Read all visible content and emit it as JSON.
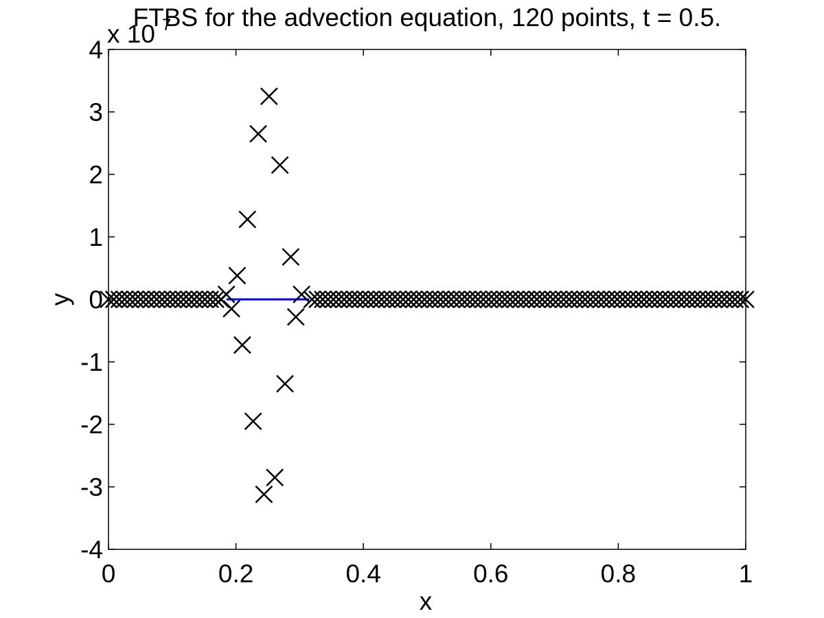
{
  "chart_data": {
    "type": "scatter",
    "title": "FTBS for the advection equation, 120 points, t = 0.5.",
    "xlabel": "x",
    "ylabel": "y",
    "y_exponent_label": {
      "base": "x 10",
      "power": "7"
    },
    "xlim": [
      0,
      1
    ],
    "ylim": [
      -4,
      4
    ],
    "xticks": [
      "0",
      "0.2",
      "0.4",
      "0.6",
      "0.8",
      "1"
    ],
    "yticks": [
      "4",
      "3",
      "2",
      "1",
      "0",
      "-1",
      "-2",
      "-3",
      "-4"
    ],
    "xtick_values": [
      0,
      0.2,
      0.4,
      0.6,
      0.8,
      1
    ],
    "ytick_values": [
      4,
      3,
      2,
      1,
      0,
      -1,
      -2,
      -3,
      -4
    ],
    "grid": false,
    "colors": {
      "exact": "#0000ff",
      "numerical": "#000000"
    },
    "series": [
      {
        "marker": "x",
        "x_start": 0,
        "x_end": 1,
        "n_points": 120,
        "baseline_y": 0,
        "nonzero_points": [
          {
            "x": 0.185,
            "y": 0.08
          },
          {
            "x": 0.193,
            "y": -0.15
          },
          {
            "x": 0.202,
            "y": 0.38
          },
          {
            "x": 0.21,
            "y": -0.73
          },
          {
            "x": 0.218,
            "y": 1.28
          },
          {
            "x": 0.227,
            "y": -1.95
          },
          {
            "x": 0.235,
            "y": 2.65
          },
          {
            "x": 0.244,
            "y": -3.12
          },
          {
            "x": 0.252,
            "y": 3.25
          },
          {
            "x": 0.261,
            "y": -2.85
          },
          {
            "x": 0.269,
            "y": 2.15
          },
          {
            "x": 0.277,
            "y": -1.35
          },
          {
            "x": 0.286,
            "y": 0.68
          },
          {
            "x": 0.294,
            "y": -0.28
          },
          {
            "x": 0.303,
            "y": 0.08
          }
        ]
      },
      {
        "line": true,
        "points": [
          {
            "x": 0.185,
            "y": 0
          },
          {
            "x": 0.315,
            "y": 0
          }
        ]
      }
    ]
  }
}
